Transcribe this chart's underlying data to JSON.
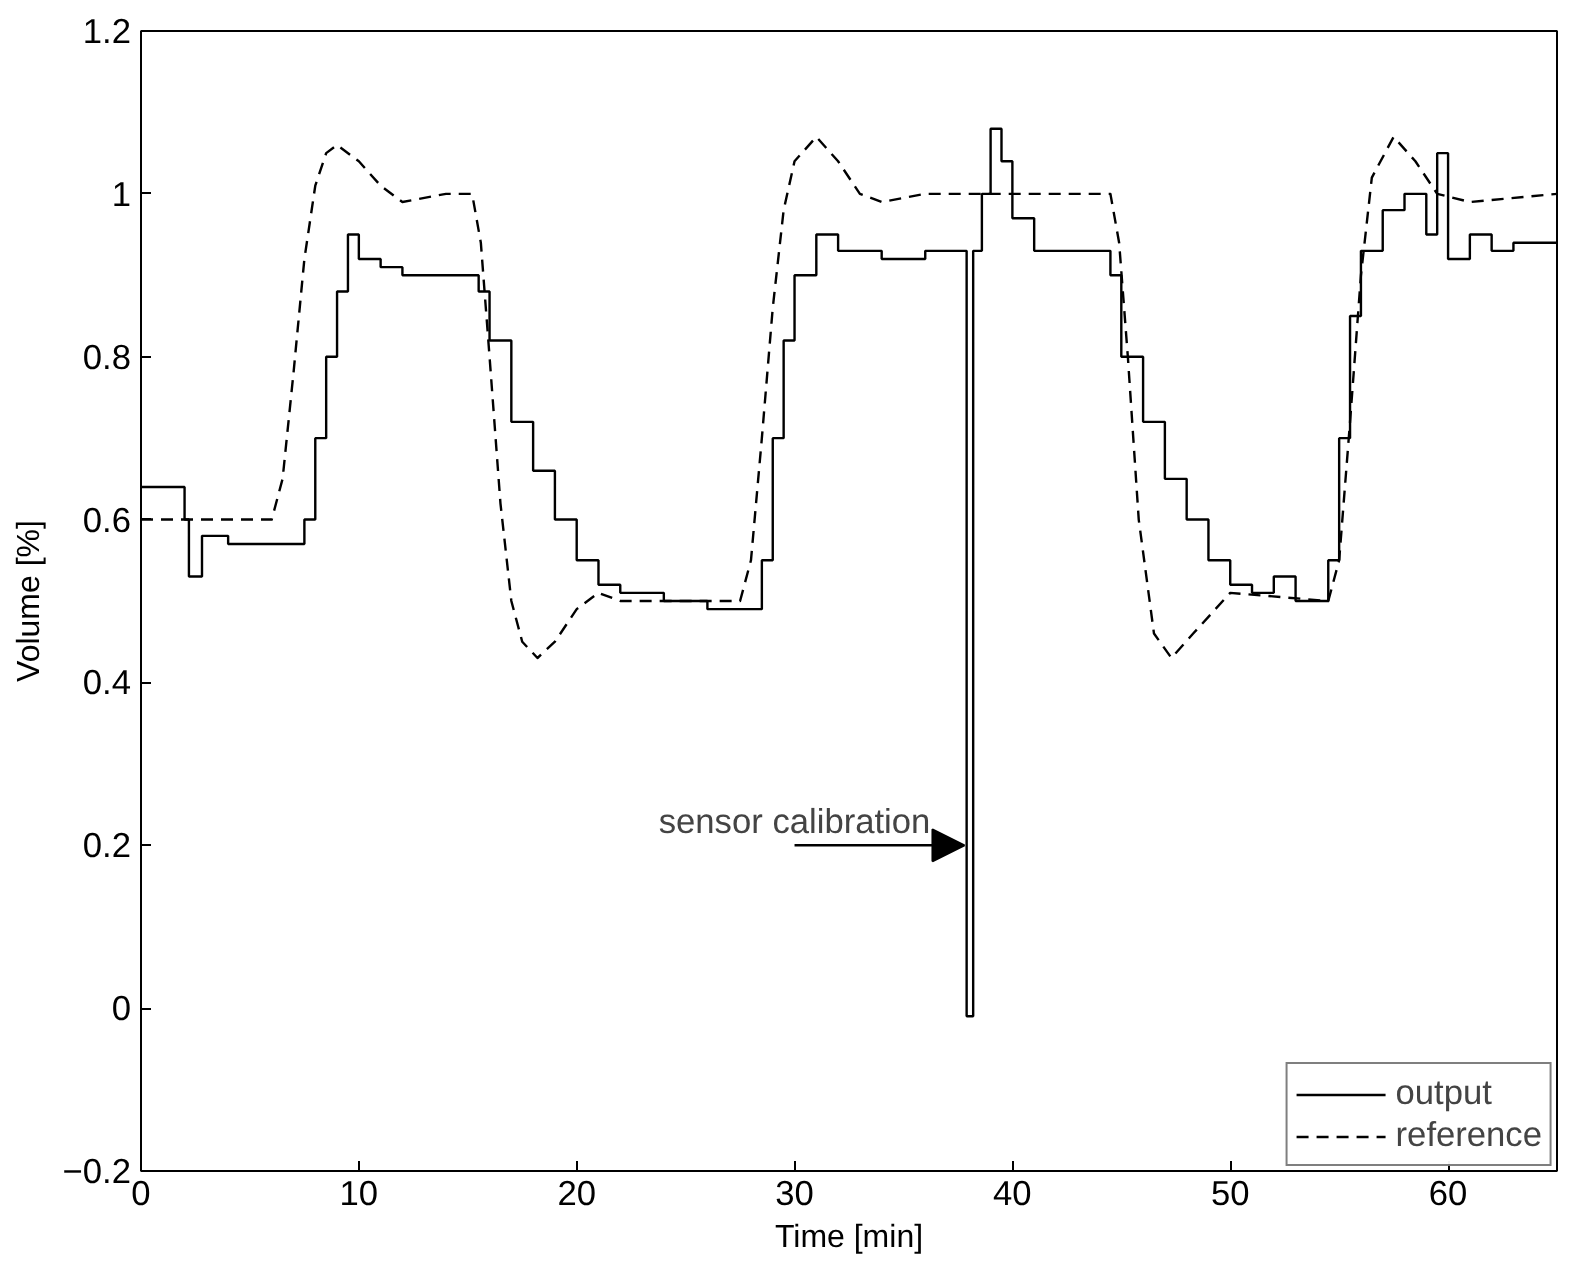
{
  "chart_data": {
    "type": "line",
    "xlabel": "Time [min]",
    "ylabel": "Volume [%]",
    "xlim": [
      0,
      65
    ],
    "ylim": [
      -0.2,
      1.2
    ],
    "xticks": [
      0,
      10,
      20,
      30,
      40,
      50,
      60
    ],
    "yticks": [
      {
        "value": -0.2,
        "label": "−0.2"
      },
      0,
      0.2,
      0.4,
      0.6,
      0.8,
      1,
      1.2
    ],
    "grid": false,
    "legend": "bottom right",
    "marker": "none",
    "annotations": [
      {
        "text": "sensor calibration",
        "x": 38,
        "y": 0.2
      }
    ],
    "series": [
      {
        "name": "output",
        "type": "step",
        "color": "#000000",
        "line_style": "solid",
        "x": [
          0,
          1.5,
          2,
          2.2,
          2.8,
          3.5,
          4,
          7,
          7.5,
          8,
          8.5,
          9,
          9.5,
          10,
          11,
          12,
          15,
          15.5,
          16,
          17,
          18,
          19,
          20,
          21,
          22,
          24,
          26,
          28,
          28.5,
          29,
          29.5,
          30,
          31,
          32,
          34,
          36,
          37.8,
          37.9,
          38.1,
          38.2,
          38.6,
          39,
          39.5,
          40,
          41,
          42,
          44,
          44.5,
          45,
          46,
          47,
          48,
          49,
          50,
          51,
          52,
          53,
          54,
          54.5,
          55,
          55.5,
          56,
          57,
          58,
          59,
          59.5,
          60,
          61,
          62,
          63,
          65
        ],
        "values": [
          0.64,
          0.64,
          0.6,
          0.53,
          0.58,
          0.58,
          0.57,
          0.57,
          0.6,
          0.7,
          0.8,
          0.88,
          0.95,
          0.92,
          0.91,
          0.9,
          0.9,
          0.88,
          0.82,
          0.72,
          0.66,
          0.6,
          0.55,
          0.52,
          0.51,
          0.5,
          0.49,
          0.49,
          0.55,
          0.7,
          0.82,
          0.9,
          0.95,
          0.93,
          0.92,
          0.93,
          0.93,
          -0.01,
          -0.01,
          0.93,
          1.0,
          1.08,
          1.04,
          0.97,
          0.93,
          0.93,
          0.93,
          0.9,
          0.8,
          0.72,
          0.65,
          0.6,
          0.55,
          0.52,
          0.51,
          0.53,
          0.5,
          0.5,
          0.55,
          0.7,
          0.85,
          0.93,
          0.98,
          1.0,
          0.95,
          1.05,
          0.92,
          0.95,
          0.93,
          0.94,
          0.94
        ]
      },
      {
        "name": "reference",
        "color": "#000000",
        "line_style": "dashed",
        "x": [
          0,
          6,
          6.5,
          7,
          7.5,
          8,
          8.5,
          9,
          10,
          11,
          12,
          14,
          15.2,
          15.6,
          16,
          16.5,
          17,
          17.5,
          18.2,
          19,
          20,
          21,
          22,
          27.5,
          28,
          28.5,
          29,
          29.5,
          30,
          31,
          32,
          33,
          34,
          36,
          44.5,
          44.9,
          45.3,
          45.8,
          46.5,
          47.3,
          48.3,
          50,
          54.5,
          55,
          55.5,
          56,
          56.5,
          57.5,
          58.5,
          59.5,
          61,
          65
        ],
        "values": [
          0.6,
          0.6,
          0.65,
          0.78,
          0.92,
          1.01,
          1.05,
          1.06,
          1.04,
          1.01,
          0.99,
          1.0,
          1.0,
          0.94,
          0.8,
          0.62,
          0.5,
          0.45,
          0.43,
          0.45,
          0.49,
          0.51,
          0.5,
          0.5,
          0.55,
          0.7,
          0.86,
          0.98,
          1.04,
          1.07,
          1.04,
          1.0,
          0.99,
          1.0,
          1.0,
          0.94,
          0.8,
          0.6,
          0.46,
          0.43,
          0.46,
          0.51,
          0.5,
          0.55,
          0.72,
          0.9,
          1.02,
          1.07,
          1.04,
          1.0,
          0.99,
          1.0
        ]
      }
    ]
  }
}
